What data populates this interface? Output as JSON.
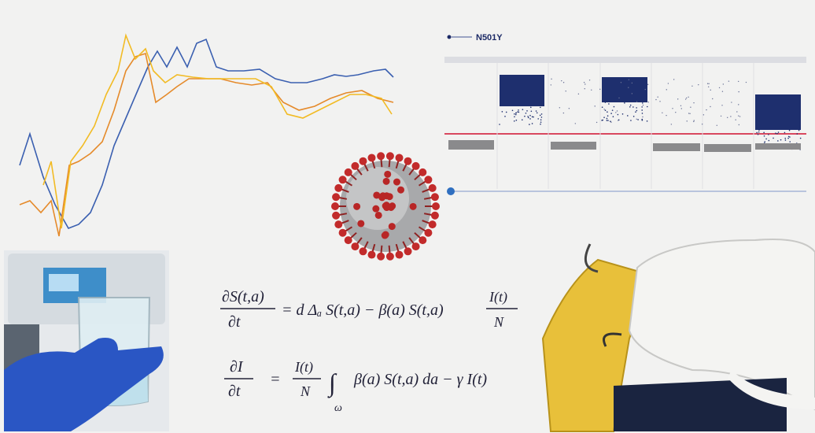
{
  "legend": {
    "label": "N501Y"
  },
  "equations": [
    {
      "lhs_numerator": "∂S(t,a)",
      "lhs_denominator": "∂t",
      "rhs": "= d Δₐ S(t,a) − β(a) S(t,a)",
      "fraction_numerator": "I(t)",
      "fraction_denominator": "N"
    },
    {
      "lhs_numerator": "∂I",
      "lhs_denominator": "∂t",
      "equals": "=",
      "fraction_numerator": "I(t)",
      "fraction_denominator": "N",
      "integral": "∫",
      "integral_domain": "ω",
      "rhs": "β(a) S(t,a) da − γ I(t)"
    }
  ]
}
